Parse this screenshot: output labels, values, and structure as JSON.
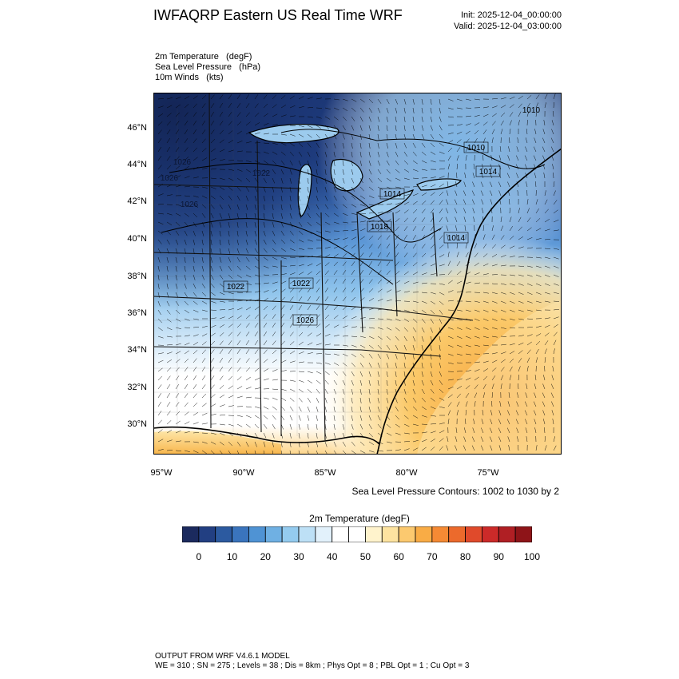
{
  "header": {
    "title": "IWFAQRP Eastern US Real Time WRF",
    "init": "Init: 2025-12-04_00:00:00",
    "valid": "Valid: 2025-12-04_03:00:00"
  },
  "fields": [
    "2m Temperature   (degF)",
    "Sea Level Pressure   (hPa)",
    "10m Winds   (kts)"
  ],
  "map": {
    "lat_labels": [
      "46°N",
      "44°N",
      "42°N",
      "40°N",
      "38°N",
      "36°N",
      "34°N",
      "32°N",
      "30°N"
    ],
    "lon_labels": [
      "95°W",
      "90°W",
      "85°W",
      "80°W",
      "75°W"
    ],
    "pressure_labels": [
      "1010",
      "1010",
      "1014",
      "1014",
      "1026",
      "1022",
      "1018",
      "1026",
      "1022",
      "1022",
      "1026",
      "1014",
      "1026"
    ],
    "contour_note": "Sea Level Pressure Contours: 1002 to 1030 by 2"
  },
  "colorbar": {
    "title": "2m Temperature  (degF)",
    "tick_labels": [
      "0",
      "10",
      "20",
      "30",
      "40",
      "50",
      "60",
      "70",
      "80",
      "90",
      "100"
    ],
    "colors": [
      "#1b2a5e",
      "#223f82",
      "#2c5aa0",
      "#3a74bd",
      "#4f93d4",
      "#6fb0e3",
      "#94cbef",
      "#bde0f6",
      "#e2f1fb",
      "#ffffff",
      "#ffffff",
      "#fff3cc",
      "#fde3a0",
      "#fcc96f",
      "#f9ac45",
      "#f58a34",
      "#ec6a2c",
      "#e04a2b",
      "#cc2a29",
      "#b01f24",
      "#8e1418"
    ]
  },
  "footer": {
    "line1": "OUTPUT FROM WRF V4.6.1 MODEL",
    "line2": "WE = 310 ; SN = 275 ; Levels = 38 ; Dis = 8km ; Phys Opt = 8 ; PBL Opt = 1 ; Cu Opt = 3"
  }
}
